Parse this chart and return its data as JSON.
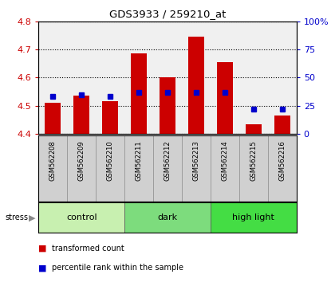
{
  "title": "GDS3933 / 259210_at",
  "samples": [
    "GSM562208",
    "GSM562209",
    "GSM562210",
    "GSM562211",
    "GSM562212",
    "GSM562213",
    "GSM562214",
    "GSM562215",
    "GSM562216"
  ],
  "transformed_counts": [
    4.51,
    4.535,
    4.515,
    4.685,
    4.6,
    4.745,
    4.655,
    4.435,
    4.465
  ],
  "percentile_ranks": [
    33,
    35,
    33,
    37,
    37,
    37,
    37,
    22,
    22
  ],
  "ylim_left": [
    4.4,
    4.8
  ],
  "ylim_right": [
    0,
    100
  ],
  "yticks_left": [
    4.4,
    4.5,
    4.6,
    4.7,
    4.8
  ],
  "yticks_right": [
    0,
    25,
    50,
    75,
    100
  ],
  "groups": [
    {
      "label": "control",
      "indices": [
        0,
        1,
        2
      ],
      "color": "#c8f0b0"
    },
    {
      "label": "dark",
      "indices": [
        3,
        4,
        5
      ],
      "color": "#7ddc7d"
    },
    {
      "label": "high light",
      "indices": [
        6,
        7,
        8
      ],
      "color": "#44dd44"
    }
  ],
  "bar_color": "#cc0000",
  "dot_color": "#0000cc",
  "bar_bottom": 4.4,
  "stress_label": "stress",
  "legend_items": [
    {
      "label": "transformed count",
      "color": "#cc0000"
    },
    {
      "label": "percentile rank within the sample",
      "color": "#0000cc"
    }
  ],
  "background_color": "#ffffff",
  "tick_label_color_left": "#cc0000",
  "tick_label_color_right": "#0000cc",
  "sample_bg_color": "#d0d0d0",
  "plot_border_color": "#000000"
}
